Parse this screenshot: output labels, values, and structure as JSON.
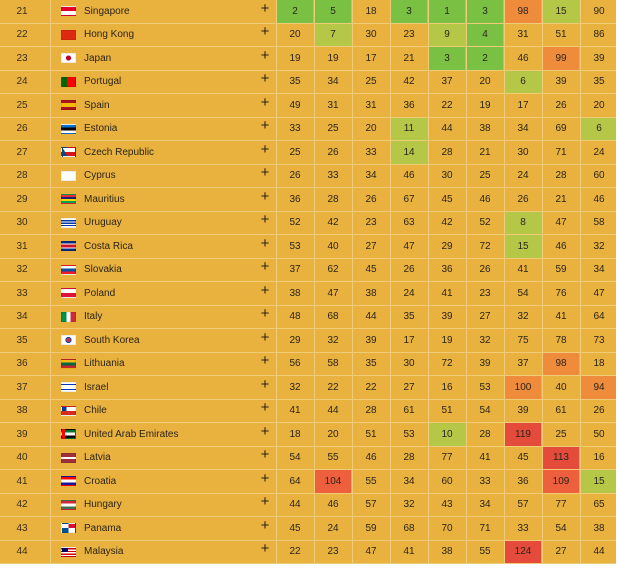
{
  "palette": {
    "row_bg": "#e9b23e",
    "green_dark": "#7ac143",
    "green_light": "#b5c747",
    "orange_light": "#eea93c",
    "orange": "#ef8c3c",
    "red": "#ed5f3d",
    "red_dark": "#e54b3a",
    "expand_icon": "plus-icon"
  },
  "rows": [
    {
      "rank": "21",
      "country": "Singapore",
      "flag": "sg",
      "values": [
        "2",
        "5",
        "18",
        "3",
        "1",
        "3",
        "98",
        "15",
        "90"
      ]
    },
    {
      "rank": "22",
      "country": "Hong Kong",
      "flag": "hk",
      "values": [
        "20",
        "7",
        "30",
        "23",
        "9",
        "4",
        "31",
        "51",
        "86"
      ]
    },
    {
      "rank": "23",
      "country": "Japan",
      "flag": "jp",
      "values": [
        "19",
        "19",
        "17",
        "21",
        "3",
        "2",
        "46",
        "99",
        "39"
      ]
    },
    {
      "rank": "24",
      "country": "Portugal",
      "flag": "pt",
      "values": [
        "35",
        "34",
        "25",
        "42",
        "37",
        "20",
        "6",
        "39",
        "35"
      ]
    },
    {
      "rank": "25",
      "country": "Spain",
      "flag": "es",
      "values": [
        "49",
        "31",
        "31",
        "36",
        "22",
        "19",
        "17",
        "26",
        "20"
      ]
    },
    {
      "rank": "26",
      "country": "Estonia",
      "flag": "ee",
      "values": [
        "33",
        "25",
        "20",
        "11",
        "44",
        "38",
        "34",
        "69",
        "6"
      ]
    },
    {
      "rank": "27",
      "country": "Czech Republic",
      "flag": "cz",
      "values": [
        "25",
        "26",
        "33",
        "14",
        "28",
        "21",
        "30",
        "71",
        "24"
      ]
    },
    {
      "rank": "28",
      "country": "Cyprus",
      "flag": "cy",
      "values": [
        "26",
        "33",
        "34",
        "46",
        "30",
        "25",
        "24",
        "28",
        "60"
      ]
    },
    {
      "rank": "29",
      "country": "Mauritius",
      "flag": "mu",
      "values": [
        "36",
        "28",
        "26",
        "67",
        "45",
        "46",
        "26",
        "21",
        "46"
      ]
    },
    {
      "rank": "30",
      "country": "Uruguay",
      "flag": "uy",
      "values": [
        "52",
        "42",
        "23",
        "63",
        "42",
        "52",
        "8",
        "47",
        "58"
      ]
    },
    {
      "rank": "31",
      "country": "Costa Rica",
      "flag": "cr",
      "values": [
        "53",
        "40",
        "27",
        "47",
        "29",
        "72",
        "15",
        "46",
        "32"
      ]
    },
    {
      "rank": "32",
      "country": "Slovakia",
      "flag": "sk",
      "values": [
        "37",
        "62",
        "45",
        "26",
        "36",
        "26",
        "41",
        "59",
        "34"
      ]
    },
    {
      "rank": "33",
      "country": "Poland",
      "flag": "pl",
      "values": [
        "38",
        "47",
        "38",
        "24",
        "41",
        "23",
        "54",
        "76",
        "47"
      ]
    },
    {
      "rank": "34",
      "country": "Italy",
      "flag": "it",
      "values": [
        "48",
        "68",
        "44",
        "35",
        "39",
        "27",
        "32",
        "41",
        "64"
      ]
    },
    {
      "rank": "35",
      "country": "South Korea",
      "flag": "kr",
      "values": [
        "29",
        "32",
        "39",
        "17",
        "19",
        "32",
        "75",
        "78",
        "73"
      ]
    },
    {
      "rank": "36",
      "country": "Lithuania",
      "flag": "lt",
      "values": [
        "56",
        "58",
        "35",
        "30",
        "72",
        "39",
        "37",
        "98",
        "18"
      ]
    },
    {
      "rank": "37",
      "country": "Israel",
      "flag": "il",
      "values": [
        "32",
        "22",
        "22",
        "27",
        "16",
        "53",
        "100",
        "40",
        "94"
      ]
    },
    {
      "rank": "38",
      "country": "Chile",
      "flag": "cl",
      "values": [
        "41",
        "44",
        "28",
        "61",
        "51",
        "54",
        "39",
        "61",
        "26"
      ]
    },
    {
      "rank": "39",
      "country": "United Arab Emirates",
      "flag": "ae",
      "values": [
        "18",
        "20",
        "51",
        "53",
        "10",
        "28",
        "119",
        "25",
        "50"
      ]
    },
    {
      "rank": "40",
      "country": "Latvia",
      "flag": "lv",
      "values": [
        "54",
        "55",
        "46",
        "28",
        "77",
        "41",
        "45",
        "113",
        "16"
      ]
    },
    {
      "rank": "41",
      "country": "Croatia",
      "flag": "hr",
      "values": [
        "64",
        "104",
        "55",
        "34",
        "60",
        "33",
        "36",
        "109",
        "15"
      ]
    },
    {
      "rank": "42",
      "country": "Hungary",
      "flag": "hu",
      "values": [
        "44",
        "46",
        "57",
        "32",
        "43",
        "34",
        "57",
        "77",
        "65"
      ]
    },
    {
      "rank": "43",
      "country": "Panama",
      "flag": "pa",
      "values": [
        "45",
        "24",
        "59",
        "68",
        "70",
        "71",
        "33",
        "54",
        "38"
      ]
    },
    {
      "rank": "44",
      "country": "Malaysia",
      "flag": "my",
      "values": [
        "22",
        "23",
        "47",
        "41",
        "38",
        "55",
        "124",
        "27",
        "44"
      ]
    }
  ]
}
